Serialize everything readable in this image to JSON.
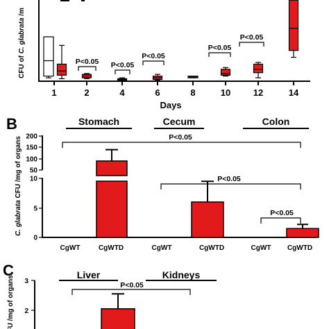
{
  "chart_data": [
    {
      "panel": "A",
      "type": "box",
      "ylabel_prefix": "CFU of ",
      "ylabel_italic": "C. glabrata",
      "ylabel_suffix": " /m",
      "xlabel": "Days",
      "categories": [
        "1",
        "2",
        "4",
        "6",
        "8",
        "10",
        "12",
        "14"
      ],
      "series": [
        {
          "color": "#ffffff",
          "boxes": [
            {
              "day": "1",
              "min": 4,
              "q1": 6,
              "median": 24,
              "q3": 52,
              "max": 52
            },
            {
              "day": "8",
              "min": 4,
              "q1": 4,
              "median": 5,
              "q3": 6,
              "max": 6
            }
          ]
        },
        {
          "color": "#e31a1c",
          "boxes": [
            {
              "day": "1",
              "min": 3,
              "q1": 7,
              "median": 12,
              "q3": 20,
              "max": 42
            },
            {
              "day": "2",
              "min": 3,
              "q1": 4,
              "median": 6,
              "q3": 8,
              "max": 9
            },
            {
              "day": "4",
              "min": 1,
              "q1": 1,
              "median": 2,
              "q3": 3,
              "max": 4
            },
            {
              "day": "6",
              "min": 1,
              "q1": 2,
              "median": 4,
              "q3": 6,
              "max": 8
            },
            {
              "day": "10",
              "min": 6,
              "q1": 7,
              "median": 9,
              "q3": 14,
              "max": 16
            },
            {
              "day": "12",
              "min": 4,
              "q1": 10,
              "median": 14,
              "q3": 20,
              "max": 22
            },
            {
              "day": "14",
              "min": 28,
              "q1": 36,
              "median": 62,
              "q3": 95,
              "max": 100
            }
          ]
        }
      ],
      "pvalues": [
        {
          "label": "P<0.05",
          "day": "2"
        },
        {
          "label": "P<0.05",
          "day": "4"
        },
        {
          "label": "P<0.05",
          "day": "6"
        },
        {
          "label": "P<0.05",
          "day": "10"
        },
        {
          "label": "P<0.05",
          "day": "12"
        }
      ]
    },
    {
      "panel": "B",
      "type": "bar",
      "ylabel_italic": "C. glabrata",
      "ylabel_suffix": " CFU /mg of organs",
      "groups": [
        "Stomach",
        "Cecum",
        "Colon"
      ],
      "categories": [
        "CgWT",
        "CgWTD",
        "CgWT",
        "CgWTD",
        "CgWT",
        "CgWTD"
      ],
      "values": [
        0,
        90,
        0,
        6,
        0,
        1.5
      ],
      "errors": [
        0,
        50,
        0,
        3.5,
        0,
        0.7
      ],
      "bar_color": "#e31a1c",
      "y_ticks_lower": [
        "0",
        "5",
        "10"
      ],
      "y_ticks_upper": [
        "50",
        "100",
        "150",
        "200"
      ],
      "pvalues": [
        {
          "label": "P<0.05",
          "span": "CgWT–CgWTD (all)"
        },
        {
          "label": "P<0.05",
          "span": "Cecum CgWT–Colon CgWTD"
        },
        {
          "label": "P<0.05",
          "span": "Colon CgWT–CgWTD"
        }
      ]
    },
    {
      "panel": "C",
      "type": "bar",
      "ylabel": "CFU /mg of organs",
      "groups": [
        "Liver",
        "Kidneys"
      ],
      "values": [
        2.05
      ],
      "errors": [
        0.5
      ],
      "y_ticks": [
        "1",
        "2",
        "3"
      ],
      "bar_color": "#e31a1c",
      "pvalues": [
        {
          "label": "P<0.05"
        }
      ]
    }
  ]
}
